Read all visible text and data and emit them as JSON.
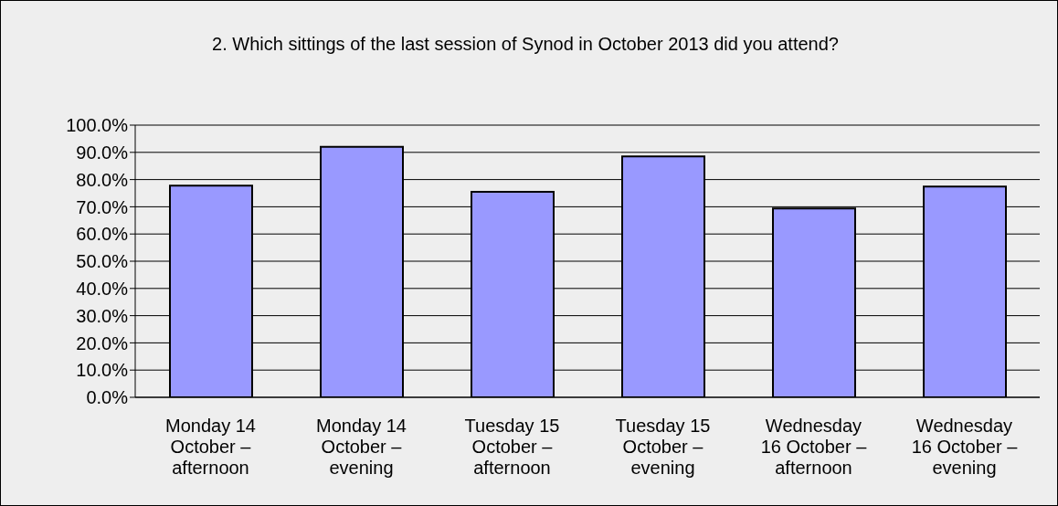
{
  "chart_data": {
    "type": "bar",
    "title": "2. Which sittings of the last session of Synod in October 2013 did you attend?",
    "categories": [
      "Monday 14 October – afternoon",
      "Monday 14 October – evening",
      "Tuesday 15 October – afternoon",
      "Tuesday 15 October – evening",
      "Wednesday 16 October – afternoon",
      "Wednesday 16 October – evening"
    ],
    "values": [
      77.8,
      92.0,
      75.5,
      88.5,
      69.4,
      77.4
    ],
    "color": "#9999ff",
    "ylim": [
      0,
      100
    ],
    "yticks": [
      {
        "value": 0,
        "label": "0.0%"
      },
      {
        "value": 10,
        "label": "10.0%"
      },
      {
        "value": 20,
        "label": "20.0%"
      },
      {
        "value": 30,
        "label": "30.0%"
      },
      {
        "value": 40,
        "label": "40.0%"
      },
      {
        "value": 50,
        "label": "50.0%"
      },
      {
        "value": 60,
        "label": "60.0%"
      },
      {
        "value": 70,
        "label": "70.0%"
      },
      {
        "value": 80,
        "label": "80.0%"
      },
      {
        "value": 90,
        "label": "90.0%"
      },
      {
        "value": 100,
        "label": "100.0%"
      }
    ],
    "grid": "y",
    "legend": false
  }
}
